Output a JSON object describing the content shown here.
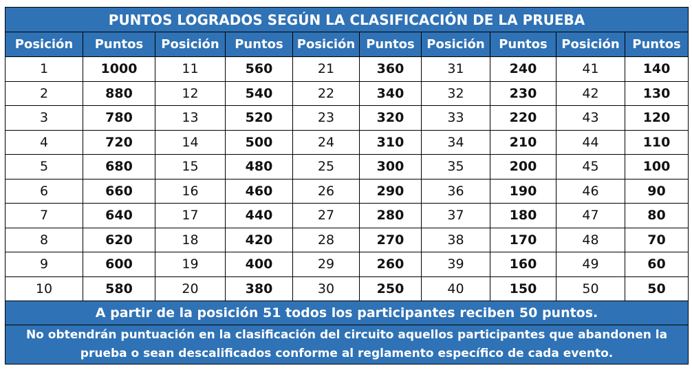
{
  "title": "PUNTOS LOGRADOS SEGÚN LA CLASIFICACIÓN DE LA PRUEBA",
  "headers": [
    "Posición",
    "Puntos",
    "Posición",
    "Puntos",
    "Posición",
    "Puntos",
    "Posición",
    "Puntos",
    "Posición",
    "Puntos"
  ],
  "rows": [
    [
      "1",
      "1000",
      "11",
      "560",
      "21",
      "360",
      "31",
      "240",
      "41",
      "140"
    ],
    [
      "2",
      "880",
      "12",
      "540",
      "22",
      "340",
      "32",
      "230",
      "42",
      "130"
    ],
    [
      "3",
      "780",
      "13",
      "520",
      "23",
      "320",
      "33",
      "220",
      "43",
      "120"
    ],
    [
      "4",
      "720",
      "14",
      "500",
      "24",
      "310",
      "34",
      "210",
      "44",
      "110"
    ],
    [
      "5",
      "680",
      "15",
      "480",
      "25",
      "300",
      "35",
      "200",
      "45",
      "100"
    ],
    [
      "6",
      "660",
      "16",
      "460",
      "26",
      "290",
      "36",
      "190",
      "46",
      "90"
    ],
    [
      "7",
      "640",
      "17",
      "440",
      "27",
      "280",
      "37",
      "180",
      "47",
      "80"
    ],
    [
      "8",
      "620",
      "18",
      "420",
      "28",
      "270",
      "38",
      "170",
      "48",
      "70"
    ],
    [
      "9",
      "600",
      "19",
      "400",
      "29",
      "260",
      "39",
      "160",
      "49",
      "60"
    ],
    [
      "10",
      "580",
      "20",
      "380",
      "30",
      "250",
      "40",
      "150",
      "50",
      "50"
    ]
  ],
  "footer_1": "A partir de la posición 51 todos los participantes reciben 50 puntos.",
  "footer_2": "No obtendrán puntuación en la clasificación del circuito aquellos participantes que abandonen la prueba o sean descalificados conforme al reglamento específico de cada evento.",
  "colors": {
    "header_bg": "#2f72b5",
    "header_text": "#ffffff"
  }
}
